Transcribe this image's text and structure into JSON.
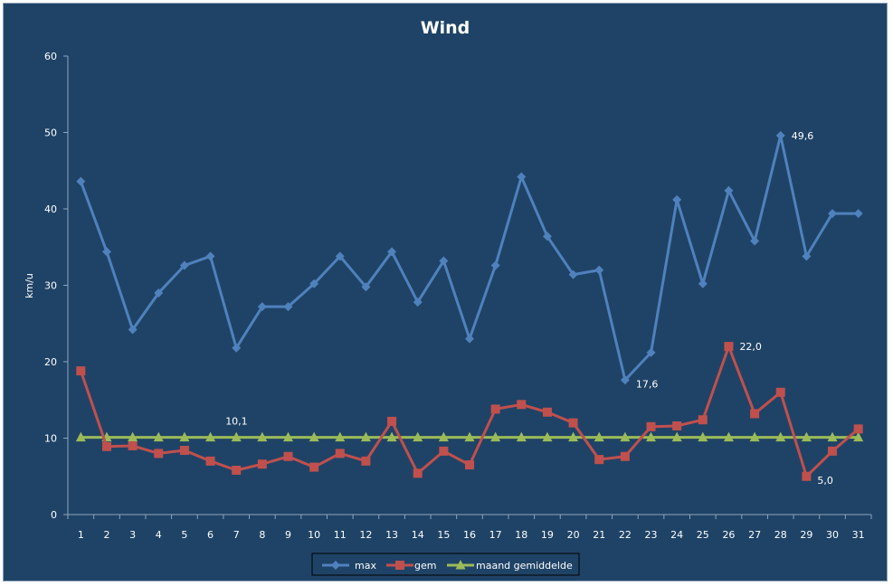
{
  "chart_data": {
    "type": "line",
    "title": "Wind",
    "xlabel": "",
    "ylabel": "km/u",
    "ylim": [
      0,
      60
    ],
    "yticks": [
      0,
      10,
      20,
      30,
      40,
      50,
      60
    ],
    "categories": [
      "1",
      "2",
      "3",
      "4",
      "5",
      "6",
      "7",
      "8",
      "9",
      "10",
      "11",
      "12",
      "13",
      "14",
      "15",
      "16",
      "17",
      "18",
      "19",
      "20",
      "21",
      "22",
      "23",
      "24",
      "25",
      "26",
      "27",
      "28",
      "29",
      "30",
      "31"
    ],
    "grid": false,
    "legend_position": "bottom",
    "series": [
      {
        "name": "max",
        "color": "#4f81bd",
        "marker": "diamond",
        "values": [
          43.6,
          34.4,
          24.2,
          29.0,
          32.6,
          33.8,
          21.8,
          27.2,
          27.2,
          30.2,
          33.8,
          29.8,
          34.4,
          27.8,
          33.2,
          23.0,
          32.6,
          44.2,
          36.4,
          31.4,
          32.0,
          17.6,
          21.2,
          41.2,
          30.2,
          42.4,
          35.8,
          49.6,
          33.8,
          39.4,
          39.4
        ]
      },
      {
        "name": "gem",
        "color": "#c0504d",
        "marker": "square",
        "values": [
          18.8,
          8.9,
          9.0,
          8.0,
          8.4,
          7.0,
          5.8,
          6.6,
          7.6,
          6.2,
          8.0,
          7.0,
          12.2,
          5.4,
          8.3,
          6.5,
          13.8,
          14.4,
          13.4,
          12.0,
          7.2,
          7.6,
          11.5,
          11.6,
          12.4,
          22.0,
          13.2,
          16.0,
          5.0,
          8.3,
          11.2
        ]
      },
      {
        "name": "maand gemiddelde",
        "color": "#9bbb59",
        "marker": "triangle",
        "values": [
          10.1,
          10.1,
          10.1,
          10.1,
          10.1,
          10.1,
          10.1,
          10.1,
          10.1,
          10.1,
          10.1,
          10.1,
          10.1,
          10.1,
          10.1,
          10.1,
          10.1,
          10.1,
          10.1,
          10.1,
          10.1,
          10.1,
          10.1,
          10.1,
          10.1,
          10.1,
          10.1,
          10.1,
          10.1,
          10.1,
          10.1
        ]
      }
    ],
    "annotations": [
      {
        "series": 0,
        "index": 27,
        "text": "49,6"
      },
      {
        "series": 0,
        "index": 21,
        "text": "17,6"
      },
      {
        "series": 1,
        "index": 25,
        "text": "22,0"
      },
      {
        "series": 1,
        "index": 28,
        "text": "5,0"
      },
      {
        "series": 2,
        "index": 6,
        "text": "10,1"
      }
    ]
  }
}
